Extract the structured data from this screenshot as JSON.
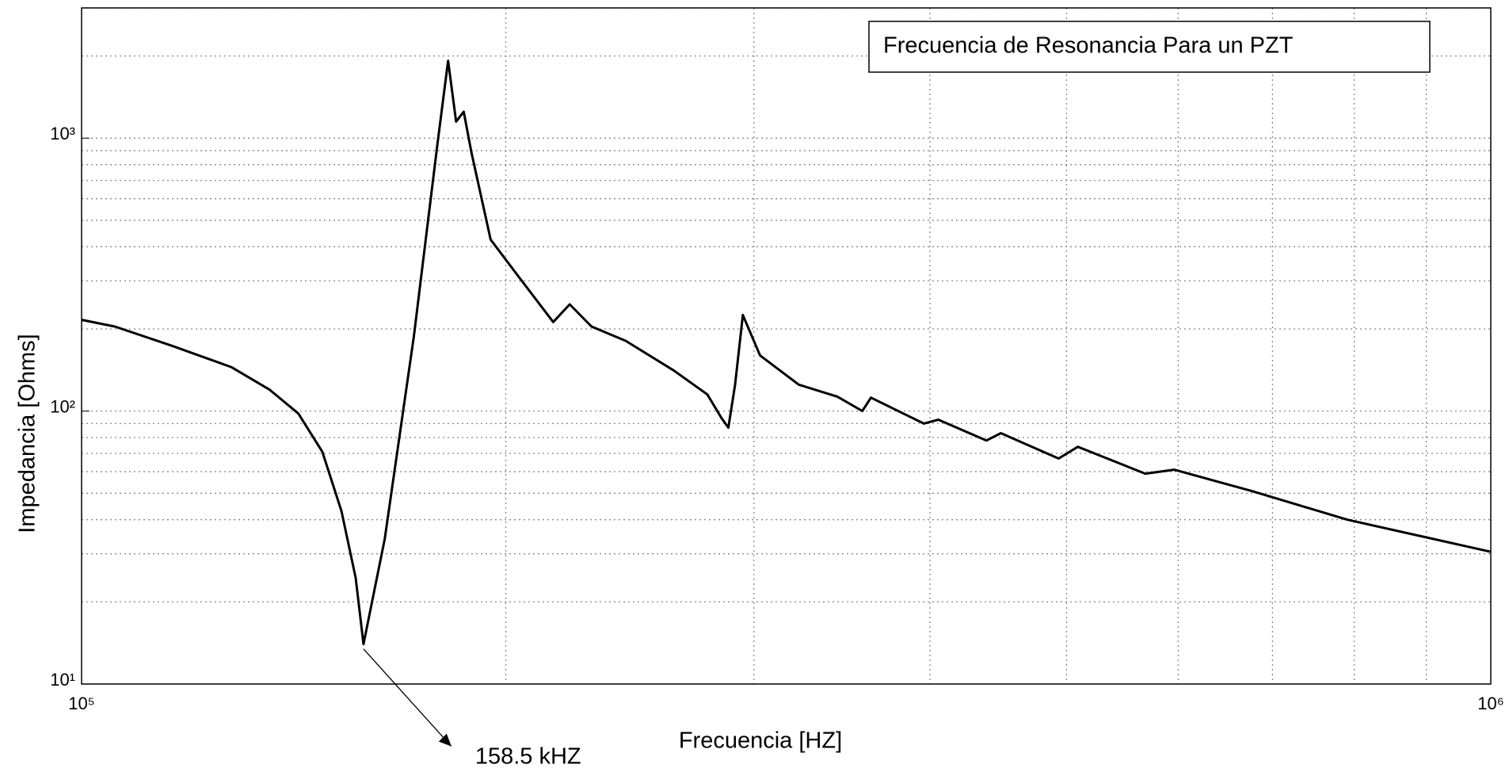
{
  "chart_data": {
    "type": "line",
    "title": "Frecuencia de Resonancia Para un PZT",
    "x_label": "Frecuencia [HZ]",
    "y_label": "Impedancia [Ohms]",
    "x": [
      100000,
      105600,
      116100,
      127700,
      135900,
      142500,
      148200,
      152900,
      156500,
      158500,
      164100,
      172100,
      178900,
      182000,
      184400,
      186700,
      189100,
      195100,
      204600,
      216100,
      222000,
      230100,
      243200,
      263100,
      278000,
      284600,
      287700,
      290900,
      294600,
      303000,
      322800,
      343800,
      358100,
      363200,
      396000,
      405500,
      438600,
      449100,
      493500,
      509300,
      568600,
      596100,
      676100,
      791100,
      1000000
    ],
    "values": [
      216,
      204,
      173,
      145,
      120,
      98,
      71,
      43,
      24.5,
      14,
      34,
      188,
      960,
      1920,
      1150,
      1250,
      885,
      425,
      307,
      212,
      246,
      204,
      181,
      141,
      115,
      94,
      87,
      125,
      225,
      160,
      125,
      113,
      100,
      112,
      90,
      93,
      78,
      83,
      67,
      74,
      59,
      61,
      51,
      40,
      30.5
    ],
    "color": "#000000",
    "xlim": [
      100000,
      1000000
    ],
    "ylim": [
      10,
      3000
    ],
    "xscale": "log",
    "yscale": "log",
    "xticks": [
      {
        "value": 100000,
        "label": "10⁵"
      },
      {
        "value": 1000000,
        "label": "10⁶"
      }
    ],
    "yticks": [
      {
        "value": 10,
        "label": "10¹"
      },
      {
        "value": 100,
        "label": "10²"
      },
      {
        "value": 1000,
        "label": "10³"
      }
    ],
    "xminor": [
      200000,
      300000,
      400000,
      500000,
      600000,
      700000,
      800000,
      900000
    ],
    "yminor": [
      20,
      30,
      40,
      50,
      60,
      70,
      80,
      90,
      200,
      300,
      400,
      500,
      600,
      700,
      800,
      900,
      2000,
      3000
    ],
    "grid": true,
    "annotations": [
      {
        "text": "158.5 kHZ",
        "x": 158500,
        "y": 14
      }
    ]
  }
}
